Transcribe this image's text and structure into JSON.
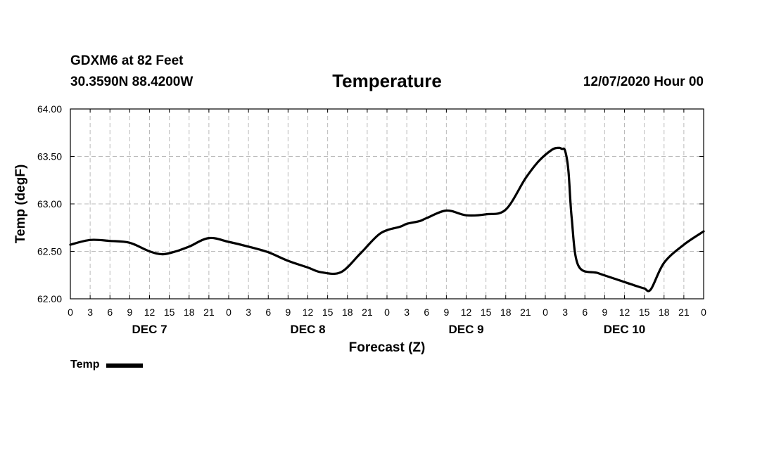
{
  "header": {
    "station": "GDXM6 at 82 Feet",
    "coords": "30.3590N 88.4200W",
    "run_time": "12/07/2020 Hour 00"
  },
  "chart_data": {
    "type": "line",
    "title": "Temperature",
    "xlabel": "Forecast (Z)",
    "ylabel": "Temp (degF)",
    "ylim": [
      62.0,
      64.0
    ],
    "xlim_hours": [
      0,
      96
    ],
    "yticks": [
      "62.00",
      "62.50",
      "63.00",
      "63.50",
      "64.00"
    ],
    "y_tick_values": [
      62.0,
      62.5,
      63.0,
      63.5,
      64.0
    ],
    "x_tick_labels": [
      "0",
      "3",
      "6",
      "9",
      "12",
      "15",
      "18",
      "21",
      "0",
      "3",
      "6",
      "9",
      "12",
      "15",
      "18",
      "21",
      "0",
      "3",
      "6",
      "9",
      "12",
      "15",
      "18",
      "21",
      "0",
      "3",
      "6",
      "9",
      "12",
      "15",
      "18",
      "21",
      "0"
    ],
    "day_labels": [
      "DEC 7",
      "DEC 8",
      "DEC 9",
      "DEC 10"
    ],
    "grid": true,
    "legend_position": "bottom-left",
    "series": [
      {
        "name": "Temp",
        "color": "#000000",
        "x_hours": [
          0,
          3,
          6,
          9,
          12,
          14,
          16,
          18,
          21,
          24,
          27,
          30,
          33,
          36,
          38,
          41,
          44,
          47,
          50,
          51,
          53,
          54,
          57,
          60,
          63,
          66,
          69,
          71,
          73,
          74,
          74.5,
          75,
          75.5,
          76,
          77,
          80,
          83,
          86,
          87,
          88,
          90,
          93,
          96
        ],
        "values": [
          62.57,
          62.62,
          62.61,
          62.59,
          62.5,
          62.47,
          62.5,
          62.55,
          62.64,
          62.6,
          62.55,
          62.49,
          62.4,
          62.33,
          62.28,
          62.28,
          62.48,
          62.69,
          62.76,
          62.79,
          62.82,
          62.85,
          62.93,
          62.88,
          62.89,
          62.94,
          63.27,
          63.45,
          63.57,
          63.59,
          63.58,
          63.56,
          63.35,
          62.85,
          62.35,
          62.27,
          62.2,
          62.13,
          62.11,
          62.1,
          62.38,
          62.57,
          62.71
        ]
      }
    ]
  }
}
